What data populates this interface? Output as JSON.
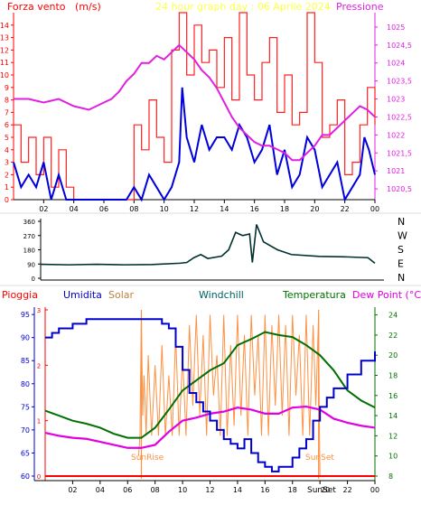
{
  "top_panel": {
    "left_title": "Forza vento",
    "left_title_unit": "(m/s)",
    "date_title": "24 hour graph day : 06 Aprile 2024",
    "right_title": "Pressione",
    "left_ticks": [
      "0",
      "1",
      "2",
      "3",
      "4",
      "5",
      "6",
      "7",
      "8",
      "9",
      "10",
      "11",
      "12",
      "13",
      "14"
    ],
    "right_ticks": [
      "1020,5",
      "1021",
      "1021,5",
      "1022",
      "1022,5",
      "1023",
      "1023,5",
      "1024",
      "1024,5",
      "1025"
    ],
    "x_ticks": [
      "02",
      "04",
      "06",
      "08",
      "10",
      "12",
      "14",
      "16",
      "18",
      "20",
      "22",
      "00"
    ]
  },
  "dir_panel": {
    "y_ticks": [
      "360",
      "270",
      "180",
      "90",
      "0"
    ],
    "compass": [
      "N",
      "W",
      "S",
      "E",
      "N"
    ]
  },
  "bottom_panel": {
    "titles": {
      "rain": "Pioggia",
      "humidity": "Umidita",
      "solar": "Solar",
      "windchill": "Windchill",
      "temperature": "Temperatura",
      "dewpoint": "Dew Point (°C)"
    },
    "humidity_ticks": [
      "60",
      "65",
      "70",
      "75",
      "80",
      "85",
      "90",
      "95"
    ],
    "rain_ticks": [
      "0",
      "1",
      "2",
      "3"
    ],
    "temp_ticks": [
      "8",
      "10",
      "12",
      "14",
      "16",
      "18",
      "20",
      "22",
      "24"
    ],
    "x_ticks": [
      "02",
      "04",
      "06",
      "08",
      "10",
      "12",
      "14",
      "16",
      "18",
      "20",
      "22",
      "00"
    ],
    "sunrise_label": "SunRise",
    "sunset_label": "SunSet",
    "sunset_label_axis": "SunSet"
  },
  "chart_data": [
    {
      "type": "line",
      "name": "wind-and-pressure",
      "x_unit": "hour",
      "xlim": [
        0,
        24
      ],
      "ylim_left": [
        0,
        15
      ],
      "ylim_right": [
        1020.2,
        1025.4
      ],
      "colors": {
        "gust": "#ff2020",
        "speed": "#0000dd",
        "pressure": "#e020e0"
      },
      "series": [
        {
          "axis": "right",
          "x": [
            0,
            1,
            2,
            3,
            4,
            5,
            6,
            6.5,
            7,
            7.5,
            8,
            8.5,
            9,
            9.5,
            10,
            10.5,
            11,
            11.5,
            12,
            12.5,
            13,
            13.5,
            14,
            14.5,
            15,
            15.5,
            16,
            16.5,
            17,
            17.5,
            18,
            18.5,
            19,
            19.5,
            20,
            20.5,
            21,
            21.5,
            22,
            22.5,
            23,
            23.5,
            24
          ],
          "values": [
            1023.0,
            1023.0,
            1022.9,
            1023.0,
            1022.8,
            1022.7,
            1022.9,
            1023.0,
            1023.2,
            1023.5,
            1023.7,
            1024.0,
            1024.0,
            1024.2,
            1024.1,
            1024.3,
            1024.5,
            1024.3,
            1024.1,
            1023.8,
            1023.6,
            1023.3,
            1022.9,
            1022.5,
            1022.2,
            1022.0,
            1021.8,
            1021.7,
            1021.7,
            1021.6,
            1021.5,
            1021.3,
            1021.3,
            1021.5,
            1021.7,
            1022.0,
            1022.0,
            1022.2,
            1022.4,
            1022.6,
            1022.8,
            1022.7,
            1022.5
          ]
        },
        {
          "axis": "left",
          "x": [
            0,
            0.5,
            1,
            1.5,
            2,
            2.5,
            3,
            3.5,
            4,
            5,
            6,
            7,
            7.5,
            8,
            8.5,
            9,
            9.5,
            10,
            10.5,
            11,
            11.2,
            11.5,
            12,
            12.5,
            13,
            13.5,
            14,
            14.5,
            15,
            15.5,
            16,
            16.5,
            17,
            17.5,
            18,
            18.5,
            19,
            19.5,
            20,
            20.5,
            21,
            21.5,
            22,
            22.5,
            23,
            23.3,
            23.6,
            24
          ],
          "values": [
            3,
            1,
            2,
            1,
            3,
            0,
            2,
            0,
            0,
            0,
            0,
            0,
            0,
            1,
            0,
            2,
            1,
            0,
            1,
            3,
            9,
            5,
            3,
            6,
            4,
            5,
            5,
            4,
            6,
            5,
            3,
            4,
            6,
            2,
            4,
            1,
            2,
            5,
            4,
            1,
            2,
            3,
            0,
            1,
            2,
            5,
            4,
            2
          ]
        },
        {
          "axis": "left",
          "x": [
            0,
            0.5,
            1,
            1.5,
            2,
            2.5,
            3,
            3.5,
            4,
            5,
            6,
            7,
            7.5,
            8,
            8.5,
            9,
            9.5,
            10,
            10.5,
            11,
            11.5,
            12,
            12.5,
            13,
            13.5,
            14,
            14.5,
            15,
            15.5,
            16,
            16.5,
            17,
            17.5,
            18,
            18.5,
            19,
            19.5,
            20,
            20.5,
            21,
            21.5,
            22,
            22.5,
            23,
            23.5,
            24
          ],
          "values": [
            6,
            3,
            5,
            2,
            5,
            1,
            4,
            1,
            0,
            0,
            0,
            0,
            0,
            6,
            4,
            8,
            5,
            3,
            12,
            15,
            10,
            14,
            11,
            12,
            9,
            13,
            8,
            15,
            10,
            8,
            11,
            13,
            7,
            10,
            6,
            7,
            15,
            11,
            5,
            6,
            8,
            2,
            3,
            6,
            9,
            6
          ]
        }
      ]
    },
    {
      "type": "line",
      "name": "wind-direction",
      "x_unit": "hour",
      "xlim": [
        0,
        24
      ],
      "ylim": [
        0,
        360
      ],
      "color": "#003030",
      "series": [
        {
          "x": [
            0,
            2,
            4,
            6,
            8,
            10,
            10.5,
            11,
            11.5,
            12,
            13,
            13.5,
            14,
            14.5,
            15,
            15.2,
            15.5,
            16,
            17,
            18,
            20,
            22,
            23.5,
            24
          ],
          "values": [
            88,
            85,
            88,
            85,
            87,
            95,
            100,
            130,
            150,
            125,
            140,
            180,
            290,
            270,
            280,
            100,
            340,
            230,
            180,
            150,
            138,
            135,
            130,
            95
          ]
        }
      ]
    },
    {
      "type": "line",
      "name": "rain-humidity-solar-temperature",
      "x_unit": "hour",
      "xlim": [
        0,
        24
      ],
      "ylim_humidity": [
        60,
        96
      ],
      "ylim_temperature": [
        8,
        24.5
      ],
      "ylim_rain": [
        0,
        3
      ],
      "colors": {
        "humidity": "#0000cc",
        "solar": "#ff9040",
        "temperature": "#007000",
        "dewpoint": "#e000e0",
        "rain": "#ff0000",
        "sun_marker": "#ff9040"
      },
      "sunrise_hour": 7.0,
      "sunset_hour": 19.9,
      "series": [
        {
          "key": "humidity",
          "x": [
            0,
            0.5,
            1,
            2,
            3,
            4,
            5,
            6,
            7,
            8,
            8.5,
            9,
            9.5,
            10,
            10.5,
            11,
            11.5,
            12,
            12.5,
            13,
            13.5,
            14,
            14.5,
            15,
            15.5,
            16,
            16.5,
            17,
            17.5,
            18,
            18.5,
            19,
            19.5,
            20,
            20.5,
            21,
            22,
            23,
            24
          ],
          "values": [
            90,
            91,
            92,
            93,
            94,
            94,
            94,
            94,
            94,
            94,
            93,
            92,
            88,
            83,
            78,
            76,
            74,
            72,
            70,
            68,
            67,
            66,
            68,
            65,
            63,
            62,
            61,
            62,
            62,
            64,
            66,
            68,
            72,
            75,
            77,
            79,
            82,
            85,
            87
          ]
        },
        {
          "key": "temperature",
          "x": [
            0,
            1,
            2,
            3,
            4,
            5,
            6,
            7,
            8,
            9,
            10,
            11,
            12,
            13,
            14,
            15,
            16,
            17,
            18,
            19,
            20,
            21,
            22,
            23,
            24
          ],
          "values": [
            14.5,
            14.0,
            13.5,
            13.2,
            12.8,
            12.2,
            11.8,
            11.8,
            12.8,
            14.6,
            16.5,
            17.5,
            18.5,
            19.2,
            21.0,
            21.6,
            22.3,
            22.0,
            21.8,
            21.0,
            20.0,
            18.5,
            16.5,
            15.5,
            14.8
          ]
        },
        {
          "key": "dewpoint",
          "x": [
            0,
            1,
            2,
            3,
            4,
            5,
            6,
            7,
            8,
            9,
            10,
            11,
            12,
            13,
            14,
            15,
            16,
            17,
            18,
            19,
            20,
            21,
            22,
            23,
            24
          ],
          "values": [
            12.3,
            12.0,
            11.8,
            11.7,
            11.4,
            11.1,
            10.8,
            10.8,
            11.1,
            12.4,
            13.5,
            13.8,
            14.2,
            14.4,
            14.8,
            14.6,
            14.2,
            14.2,
            14.8,
            14.9,
            14.6,
            13.7,
            13.3,
            13.0,
            12.8
          ]
        },
        {
          "key": "solar_envelope",
          "x": [
            6.8,
            7.0,
            7.2,
            7.5,
            8,
            8.5,
            9,
            9.5,
            10,
            10.5,
            11,
            11.5,
            12,
            12.5,
            13,
            13.5,
            14,
            14.5,
            15,
            15.5,
            16,
            16.5,
            17,
            17.5,
            18,
            18.5,
            19,
            19.5,
            19.9,
            20
          ],
          "values": [
            10,
            24,
            18,
            20,
            19,
            21,
            18,
            22,
            20,
            23,
            24,
            22,
            24,
            20,
            24,
            21,
            24,
            22,
            24,
            22,
            24,
            23,
            24,
            23,
            24,
            22,
            24,
            23,
            24,
            8
          ]
        },
        {
          "key": "rain",
          "x": [
            0,
            24
          ],
          "values": [
            0,
            0
          ]
        }
      ]
    }
  ]
}
